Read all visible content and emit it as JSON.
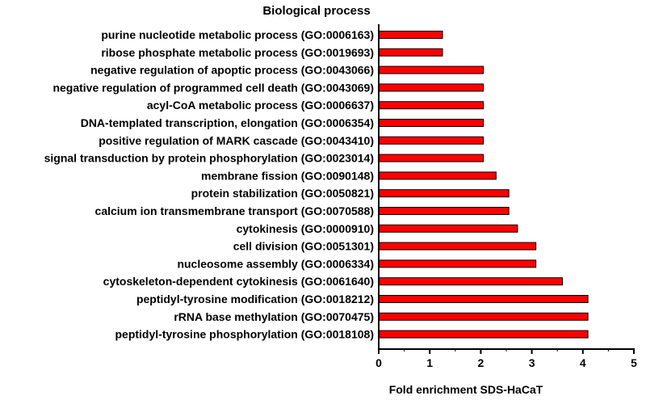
{
  "chart_data": {
    "type": "bar",
    "orientation": "horizontal",
    "title": "Biological process",
    "xlabel": "Fold enrichment SDS-HaCaT",
    "ylabel": "",
    "xlim": [
      0,
      5
    ],
    "xticks": [
      "0",
      "1",
      "2",
      "3",
      "4",
      "5"
    ],
    "grid": false,
    "legend": "none",
    "bar_color": "#ff0000",
    "bar_edge_color": "#000000",
    "categories": [
      "purine nucleotide metabolic process (GO:0006163)",
      "ribose phosphate metabolic process (GO:0019693)",
      "negative regulation of apoptic process (GO:0043066)",
      "negative regulation of programmed cell death (GO:0043069)",
      "acyl-CoA metabolic process (GO:0006637)",
      "DNA-templated transcription, elongation (GO:0006354)",
      "positive regulation of MARK cascade (GO:0043410)",
      "signal transduction by protein phosphorylation (GO:0023014)",
      "membrane fission (GO:0090148)",
      "protein stabilization (GO:0050821)",
      "calcium ion transmembrane transport (GO:0070588)",
      "cytokinesis (GO:0000910)",
      "cell division (GO:0051301)",
      "nucleosome assembly (GO:0006334)",
      "cytoskeleton-dependent cytokinesis (GO:0061640)",
      "peptidyl-tyrosine modification (GO:0018212)",
      "rRNA base methylation (GO:0070475)",
      "peptidyl-tyrosine phosphorylation (GO:0018108)"
    ],
    "values": [
      1.25,
      1.25,
      2.05,
      2.05,
      2.05,
      2.05,
      2.05,
      2.05,
      2.3,
      2.55,
      2.55,
      2.72,
      3.08,
      3.08,
      3.6,
      4.1,
      4.1,
      4.1
    ]
  }
}
